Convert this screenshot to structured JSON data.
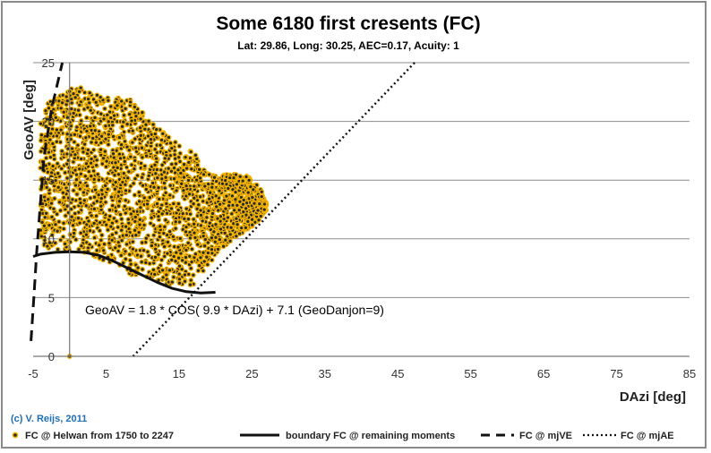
{
  "chart_data": {
    "type": "scatter",
    "title": "Some 6180 first cresents (FC)",
    "subtitle": "Lat: 29.86, Long: 30.25, AEC=0.17, Acuity: 1",
    "xlabel": "DAzi [deg]",
    "ylabel": "GeoAV [deg]",
    "xlim": [
      -5,
      85
    ],
    "ylim": [
      0,
      25
    ],
    "xticks": [
      "-5",
      "5",
      "15",
      "25",
      "35",
      "45",
      "55",
      "65",
      "75",
      "85"
    ],
    "yticks": [
      "0",
      "5",
      "10",
      "15",
      "20",
      "25"
    ],
    "grid": "horizontal",
    "annotation": "GeoAV = 1.8 * COS( 9.9 * DAzi) + 7.1 (GeoDanjon=9)",
    "credit": "(c) V. Reijs, 2011",
    "series": [
      {
        "name": "FC @ Helwan from 1750 to 2247",
        "style": "scatter",
        "marker_fill": "#2b2b2b",
        "marker_edge": "#f5b400",
        "count": 6180,
        "region": {
          "x_range": [
            -4,
            27
          ],
          "upper_envelope": [
            [
              -4,
              20
            ],
            [
              -3,
              21.5
            ],
            [
              -1,
              22.5
            ],
            [
              1,
              23
            ],
            [
              3,
              22.5
            ],
            [
              5,
              22
            ],
            [
              8,
              22
            ],
            [
              10,
              21
            ],
            [
              12,
              19.5
            ],
            [
              14,
              18.5
            ],
            [
              16,
              17.5
            ],
            [
              17,
              17.7
            ],
            [
              18,
              16
            ],
            [
              20,
              15.5
            ],
            [
              22,
              15.5
            ],
            [
              24,
              15.5
            ],
            [
              26,
              14.5
            ],
            [
              27,
              13
            ]
          ],
          "lower_envelope": [
            [
              -4,
              9.2
            ],
            [
              0,
              9
            ],
            [
              2,
              8.8
            ],
            [
              5,
              8
            ],
            [
              8,
              7
            ],
            [
              10,
              6.5
            ],
            [
              12,
              6.3
            ],
            [
              14,
              6
            ],
            [
              16,
              6
            ],
            [
              17,
              6
            ],
            [
              18,
              7
            ],
            [
              20,
              8.5
            ],
            [
              22,
              9.8
            ],
            [
              24,
              10.5
            ],
            [
              26,
              11.5
            ],
            [
              27,
              12.5
            ]
          ],
          "outlier": [
            0,
            0
          ]
        }
      },
      {
        "name": "boundary FC @ remaining moments",
        "style": "solid",
        "x": [
          -5,
          -4,
          -2,
          0,
          2,
          4,
          6,
          8,
          10,
          12,
          14,
          16,
          17,
          18,
          20
        ],
        "y": [
          8.5,
          8.7,
          8.85,
          8.9,
          8.85,
          8.6,
          8.1,
          7.5,
          6.9,
          6.3,
          5.8,
          5.5,
          5.45,
          5.4,
          5.45
        ]
      },
      {
        "name": "FC @ mjVE",
        "style": "dashed",
        "x": [
          -5.3,
          -4.9,
          -4.5,
          -4,
          -3.5,
          -2.5,
          -1
        ],
        "y": [
          1.3,
          5,
          9,
          13,
          17,
          21,
          25
        ]
      },
      {
        "name": "FC @ mjAE",
        "style": "dotted",
        "x": [
          8.7,
          47.3
        ],
        "y": [
          0,
          25
        ]
      }
    ]
  }
}
